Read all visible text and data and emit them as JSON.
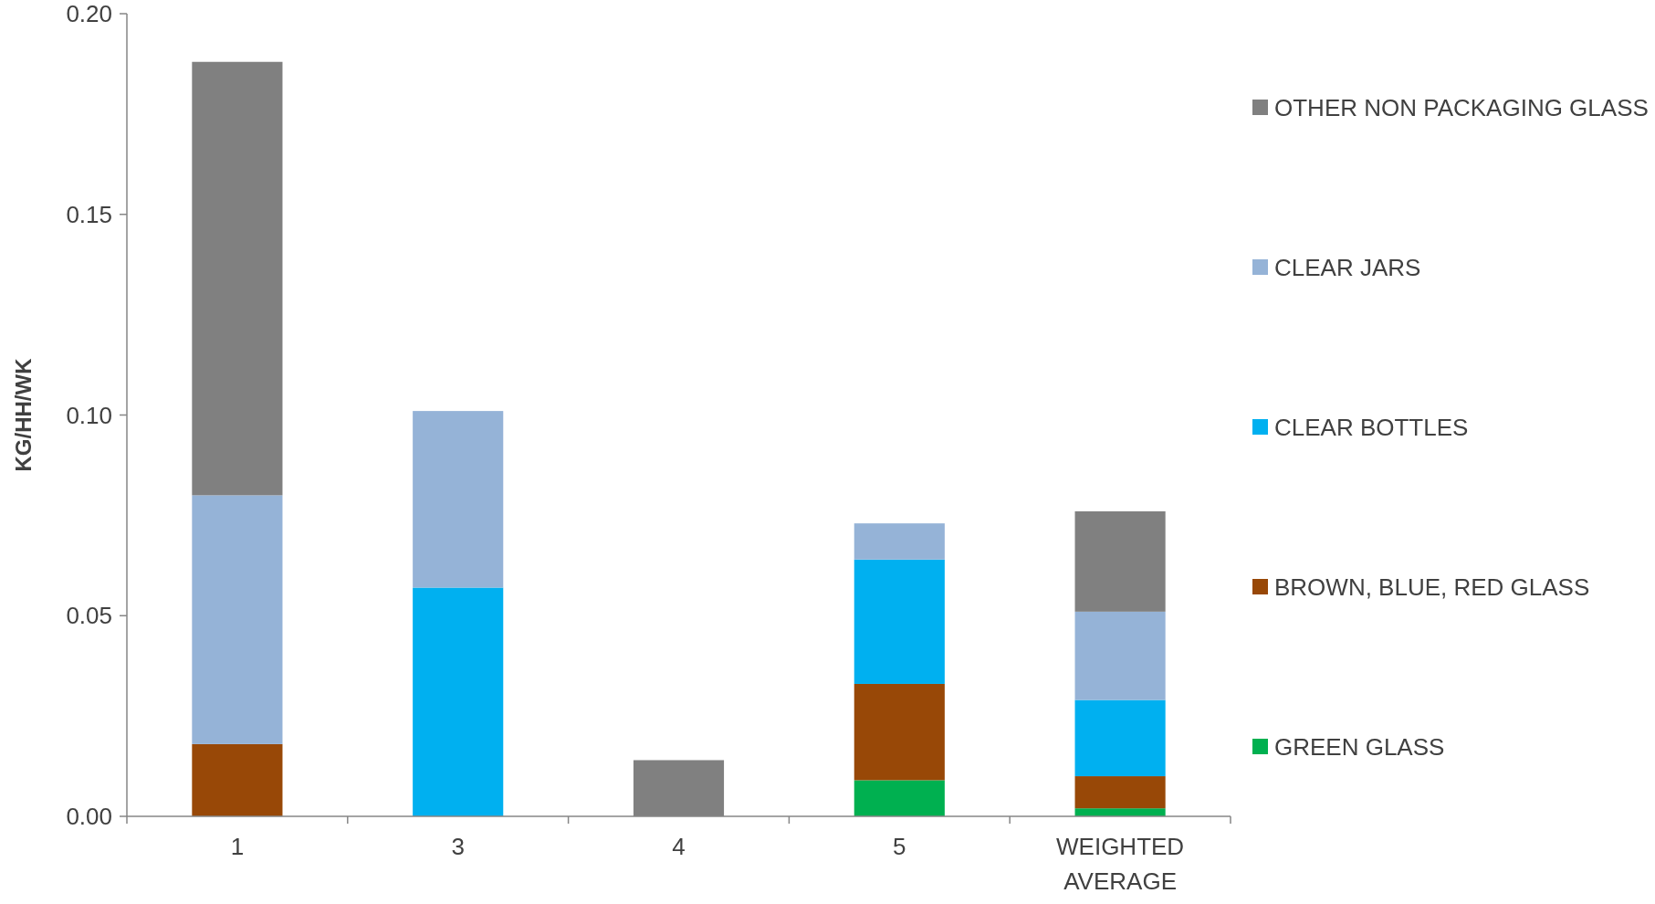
{
  "chart_data": {
    "type": "bar",
    "stacked": true,
    "ylabel": "KG/HH/WK",
    "categories": [
      "1",
      "3",
      "4",
      "5",
      "WEIGHTED AVERAGE"
    ],
    "series": [
      {
        "name": "GREEN GLASS",
        "color": "#00b050",
        "values": [
          0,
          0,
          0,
          0.009,
          0.002
        ]
      },
      {
        "name": "BROWN, BLUE, RED GLASS",
        "color": "#984807",
        "values": [
          0.018,
          0,
          0,
          0.024,
          0.008
        ]
      },
      {
        "name": "CLEAR BOTTLES",
        "color": "#00b0f0",
        "values": [
          0,
          0.057,
          0,
          0.031,
          0.019
        ]
      },
      {
        "name": "CLEAR JARS",
        "color": "#95b3d7",
        "values": [
          0.062,
          0.044,
          0,
          0.009,
          0.022
        ]
      },
      {
        "name": "OTHER NON PACKAGING GLASS",
        "color": "#808080",
        "values": [
          0.108,
          0,
          0.014,
          0,
          0.025
        ]
      }
    ],
    "ylim": [
      0,
      0.2
    ],
    "yticks": [
      {
        "value": 0,
        "label": "0.00"
      },
      {
        "value": 0.05,
        "label": "0.05"
      },
      {
        "value": 0.1,
        "label": "0.10"
      },
      {
        "value": 0.15,
        "label": "0.15"
      },
      {
        "value": 0.2,
        "label": "0.20"
      }
    ],
    "grid": false,
    "legend": "right"
  }
}
